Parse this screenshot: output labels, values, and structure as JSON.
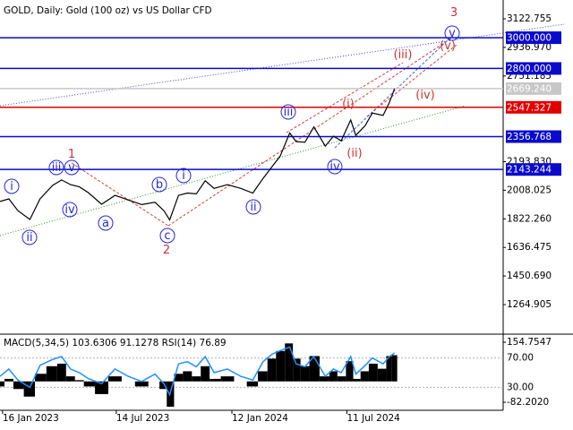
{
  "chart_data": [
    {
      "type": "line",
      "title": "GOLD, Daily:  Gold (100 oz) vs US Dollar CFD",
      "color": "#000000",
      "x": [
        "2023-01-12",
        "2023-01-26",
        "2023-02-09",
        "2023-02-28",
        "2023-03-16",
        "2023-04-05",
        "2023-04-19",
        "2023-05-03",
        "2023-05-17",
        "2023-05-31",
        "2023-06-21",
        "2023-07-12",
        "2023-08-02",
        "2023-08-23",
        "2023-09-13",
        "2023-09-27",
        "2023-10-06",
        "2023-10-20",
        "2023-11-03",
        "2023-11-17",
        "2023-12-01",
        "2023-12-15",
        "2024-01-05",
        "2024-01-26",
        "2024-02-14",
        "2024-03-01",
        "2024-03-15",
        "2024-03-28",
        "2024-04-12",
        "2024-04-22",
        "2024-05-06",
        "2024-05-20",
        "2024-06-07",
        "2024-06-20",
        "2024-07-02",
        "2024-07-17",
        "2024-07-25",
        "2024-08-09",
        "2024-08-20",
        "2024-09-06",
        "2024-09-16",
        "2024-09-24"
      ],
      "values": [
        1935,
        1952,
        1876,
        1818,
        1952,
        2040,
        2075,
        2045,
        2030,
        1993,
        1917,
        1975,
        1945,
        1915,
        1930,
        1875,
        1815,
        1975,
        1990,
        1985,
        2070,
        2020,
        2045,
        2020,
        1990,
        2085,
        2160,
        2230,
        2380,
        2325,
        2320,
        2420,
        2295,
        2360,
        2330,
        2465,
        2365,
        2430,
        2510,
        2495,
        2580,
        2669.24
      ],
      "xlim": [
        "2023-01-12",
        "2025-03-14"
      ],
      "ylim": [
        1078.5,
        3245.1
      ],
      "yticks": [
        3122.755,
        {
          "value": 2936.97,
          "label": "2936.970"
        },
        2751.185,
        {
          "value": 2193.83,
          "label": "2193.830"
        },
        2008.025,
        {
          "value": 1822.26,
          "label": "1822.260"
        },
        1636.475,
        {
          "value": 1450.69,
          "label": "1450.690"
        },
        1264.905
      ],
      "levels": [
        {
          "value": 3000,
          "label": "3000.000",
          "color": "#0a0acc"
        },
        {
          "value": 2800,
          "label": "2800.000",
          "color": "#0a0acc"
        },
        {
          "value": 2669.24,
          "label": "2669.240",
          "color": "#c8c8c8"
        },
        {
          "value": 2547.327,
          "label": "2547.327",
          "color": "#e00000"
        },
        {
          "value": 2356.768,
          "label": "2356.768",
          "color": "#0a0acc"
        },
        {
          "value": 2143.244,
          "label": "2143.244",
          "color": "#0a0acc"
        }
      ],
      "annotations": [
        {
          "text": "1",
          "color": "#cc3333",
          "circled": false
        },
        {
          "text": "2",
          "color": "#cc3333",
          "circled": false
        },
        {
          "text": "3",
          "color": "#cc3333",
          "circled": false
        },
        {
          "text": "(i)",
          "color": "#cc3333",
          "circled": false
        },
        {
          "text": "(ii)",
          "color": "#cc3333",
          "circled": false
        },
        {
          "text": "(iii)",
          "color": "#cc3333",
          "circled": false
        },
        {
          "text": "(iv)",
          "color": "#cc3333",
          "circled": false
        },
        {
          "text": "(v)",
          "color": "#cc3333",
          "circled": false
        },
        {
          "text": "i",
          "color": "#2626d9",
          "circled": true
        },
        {
          "text": "ii",
          "color": "#2626d9",
          "circled": true
        },
        {
          "text": "iii",
          "color": "#2626d9",
          "circled": true
        },
        {
          "text": "iv",
          "color": "#2626d9",
          "circled": true
        },
        {
          "text": "v",
          "color": "#2626d9",
          "circled": true
        },
        {
          "text": "a",
          "color": "#2626d9",
          "circled": true
        },
        {
          "text": "b",
          "color": "#2626d9",
          "circled": true
        },
        {
          "text": "c",
          "color": "#2626d9",
          "circled": true
        },
        {
          "text": "i",
          "color": "#2626d9",
          "circled": true
        },
        {
          "text": "ii",
          "color": "#2626d9",
          "circled": true
        },
        {
          "text": "iii",
          "color": "#2626d9",
          "circled": true
        },
        {
          "text": "iv",
          "color": "#2626d9",
          "circled": true
        },
        {
          "text": "v",
          "color": "#2626d9",
          "circled": true
        }
      ]
    },
    {
      "type": "bar",
      "title": "MACD(5,34,5) 103.6306 91.1278 RSI(14) 76.89",
      "x": [
        "2023-01-12",
        "2023-01-26",
        "2023-02-09",
        "2023-02-28",
        "2023-03-16",
        "2023-04-05",
        "2023-04-19",
        "2023-05-03",
        "2023-05-17",
        "2023-05-31",
        "2023-06-21",
        "2023-07-12",
        "2023-08-02",
        "2023-08-23",
        "2023-09-13",
        "2023-09-27",
        "2023-10-06",
        "2023-10-20",
        "2023-11-03",
        "2023-11-17",
        "2023-12-01",
        "2023-12-15",
        "2024-01-05",
        "2024-01-26",
        "2024-02-14",
        "2024-03-01",
        "2024-03-15",
        "2024-03-28",
        "2024-04-12",
        "2024-04-22",
        "2024-05-06",
        "2024-05-20",
        "2024-06-07",
        "2024-06-20",
        "2024-07-02",
        "2024-07-17",
        "2024-07-25",
        "2024-08-09",
        "2024-08-20",
        "2024-09-06",
        "2024-09-16",
        "2024-09-24"
      ],
      "series": [
        {
          "color": "#000000",
          "values": [
            -20,
            10,
            -30,
            -60,
            30,
            60,
            70,
            20,
            5,
            -20,
            -50,
            20,
            0,
            -20,
            0,
            -30,
            -100,
            30,
            40,
            20,
            60,
            10,
            20,
            0,
            -20,
            40,
            90,
            120,
            150,
            90,
            60,
            100,
            20,
            40,
            20,
            80,
            10,
            40,
            70,
            50,
            100,
            103.6306
          ]
        },
        {
          "color": "#1e90ff",
          "axis": "y2",
          "values": [
            45,
            55,
            40,
            30,
            60,
            68,
            72,
            55,
            50,
            42,
            35,
            55,
            45,
            38,
            48,
            35,
            20,
            62,
            65,
            58,
            72,
            50,
            55,
            45,
            40,
            65,
            75,
            80,
            85,
            62,
            58,
            72,
            45,
            55,
            50,
            72,
            48,
            60,
            70,
            62,
            72,
            76.89
          ]
        }
      ],
      "xlim": [
        "2023-01-12",
        "2025-03-14"
      ],
      "xticks": [
        {
          "value": "2023-01-16",
          "label": "16 Jan 2023"
        },
        {
          "value": "2023-07-14",
          "label": "14 Jul 2023"
        },
        {
          "value": "2024-01-12",
          "label": "12 Jan 2024"
        },
        {
          "value": "2024-07-11",
          "label": "11 Jul 2024"
        }
      ],
      "ylim": [
        -110.5,
        179.5
      ],
      "yticks": [
        154.7547,
        {
          "value": -82.202,
          "label": "-82.2020"
        }
      ],
      "y2lim": [
        0,
        100
      ],
      "y2ticks": [
        {
          "value": 70,
          "label": "70.00"
        },
        {
          "value": 30,
          "label": "30.00"
        }
      ]
    }
  ]
}
